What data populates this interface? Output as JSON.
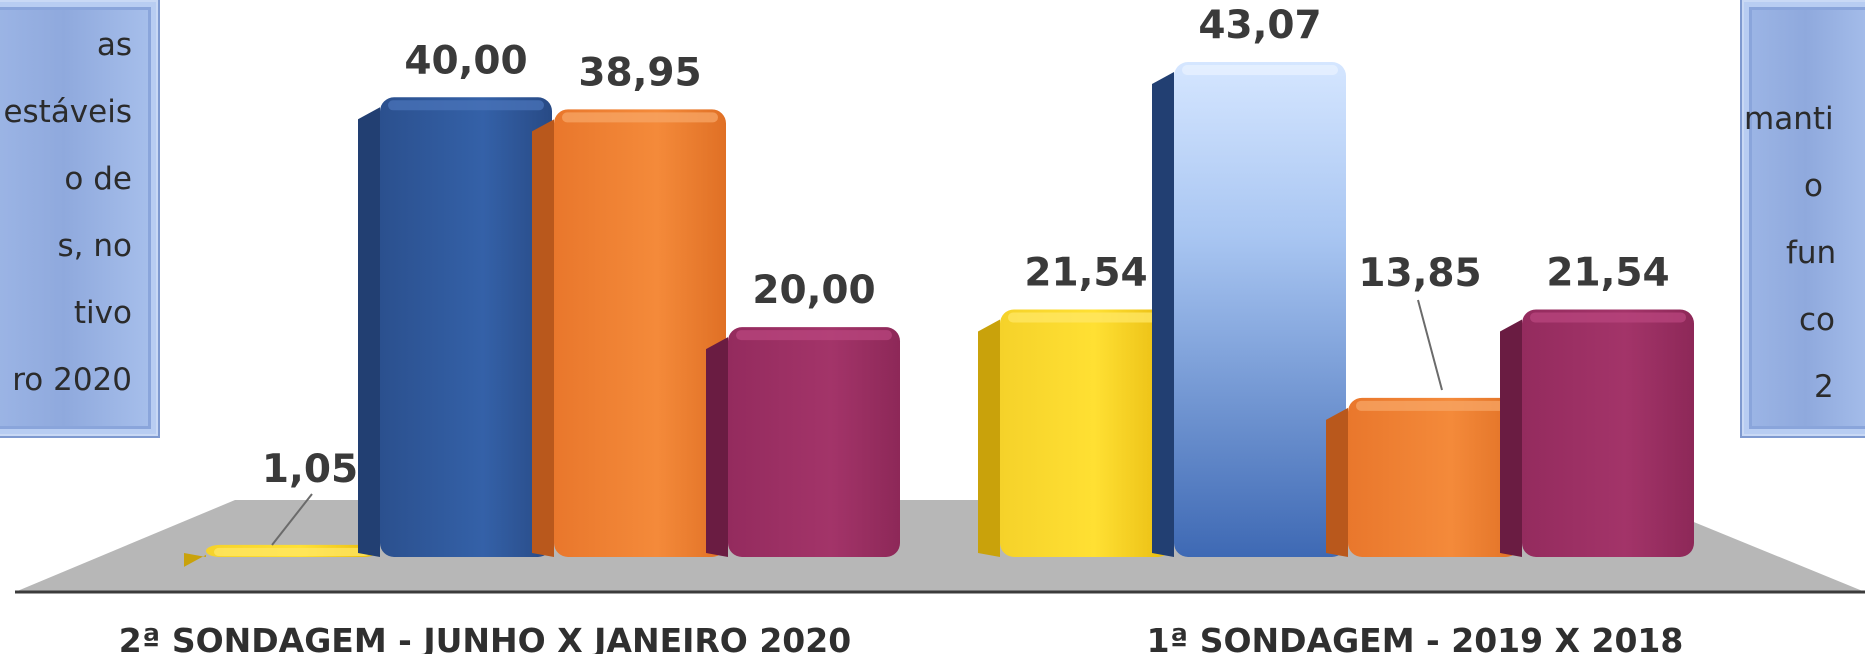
{
  "chart_data": {
    "type": "bar",
    "categories": [
      "2ª SONDAGEM - JUNHO X JANEIRO 2020",
      "1ª SONDAGEM - 2019 X 2018"
    ],
    "series": [
      {
        "values": [
          1.05,
          21.54
        ],
        "labels": [
          "1,05",
          "21,54"
        ]
      },
      {
        "values": [
          40.0,
          43.07
        ],
        "labels": [
          "40,00",
          "43,07"
        ]
      },
      {
        "values": [
          38.95,
          13.85
        ],
        "labels": [
          "38,95",
          "13,85"
        ]
      },
      {
        "values": [
          20.0,
          21.54
        ],
        "labels": [
          "20,00",
          "21,54"
        ]
      }
    ],
    "ylim": [
      0,
      43.07
    ],
    "grid": false,
    "legend": "none",
    "style": "3d",
    "colors": {
      "series": [
        "#f3c613",
        "#2f5597",
        "#ed7d31",
        "#9b2e63"
      ],
      "floor": "#b7b7b7",
      "highlight_bar": "#a9c6f2"
    }
  },
  "notes": {
    "left": [
      "as",
      "estáveis",
      "o de",
      "s, no",
      "tivo",
      "ro 2020"
    ],
    "right": [
      "manti",
      "o",
      "fun",
      "co",
      "2"
    ]
  }
}
